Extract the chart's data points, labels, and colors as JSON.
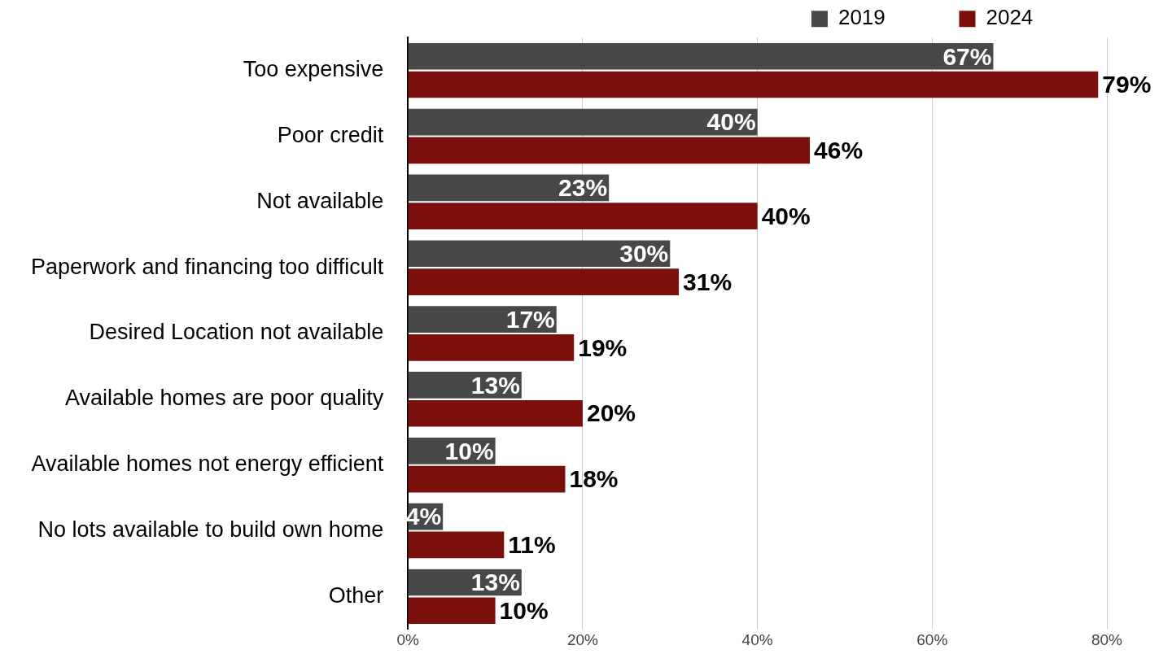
{
  "chart_data": {
    "type": "bar",
    "orientation": "horizontal",
    "categories": [
      "Too expensive",
      "Poor credit",
      "Not available",
      "Paperwork and financing too difficult",
      "Desired Location not available",
      "Available homes are poor quality",
      "Available homes not energy efficient",
      "No lots available to build own home",
      "Other"
    ],
    "series": [
      {
        "name": "2019",
        "color": "#484848",
        "values": [
          67,
          40,
          23,
          30,
          17,
          13,
          10,
          4,
          13
        ],
        "value_labels": [
          "67%",
          "40%",
          "23%",
          "30%",
          "17%",
          "13%",
          "10%",
          "4%",
          "13%"
        ]
      },
      {
        "name": "2024",
        "color": "#7a0f0b",
        "values": [
          79,
          46,
          40,
          31,
          19,
          20,
          18,
          11,
          10
        ],
        "value_labels": [
          "79%",
          "46%",
          "40%",
          "31%",
          "19%",
          "20%",
          "18%",
          "11%",
          "10%"
        ]
      }
    ],
    "xlim": [
      0,
      80
    ],
    "xticks": [
      {
        "value": 0,
        "label": "0%"
      },
      {
        "value": 20,
        "label": "20%"
      },
      {
        "value": 40,
        "label": "40%"
      },
      {
        "value": 60,
        "label": "60%"
      },
      {
        "value": 80,
        "label": "80%"
      }
    ],
    "grid": "x",
    "legend": "top right"
  }
}
